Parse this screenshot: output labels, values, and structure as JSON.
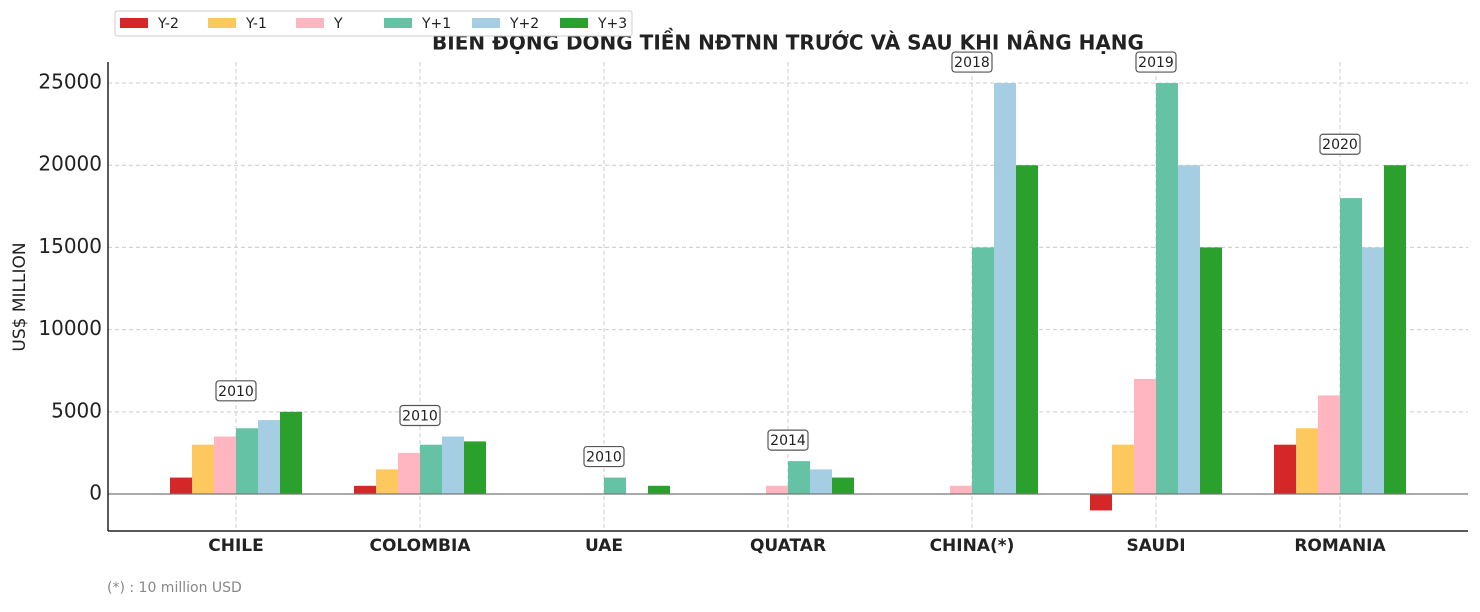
{
  "chart_data": {
    "type": "bar",
    "title": "BIẾN ĐỘNG DÒNG TIỀN NĐTNN TRƯỚC VÀ SAU KHI NÂNG HẠNG",
    "y_label": "US$ MILLION",
    "footnote": "(*) : 10 million USD",
    "categories": [
      "CHILE",
      "COLOMBIA",
      "UAE",
      "QUATAR",
      "CHINA(*)",
      "SAUDI",
      "ROMANIA"
    ],
    "annotations": [
      "2010",
      "2010",
      "2010",
      "2014",
      "2018",
      "2019",
      "2020"
    ],
    "series": [
      {
        "name": "Y-2",
        "color": "#d62728",
        "values": [
          1000,
          500,
          0,
          0,
          0,
          -1000,
          3000
        ]
      },
      {
        "name": "Y-1",
        "color": "#fdc85e",
        "values": [
          3000,
          1500,
          0,
          0,
          0,
          3000,
          4000
        ]
      },
      {
        "name": "Y",
        "color": "#ffb6c1",
        "values": [
          3500,
          2500,
          0,
          500,
          500,
          7000,
          6000
        ]
      },
      {
        "name": "Y+1",
        "color": "#66c2a5",
        "values": [
          4000,
          3000,
          1000,
          2000,
          15000,
          25000,
          18000
        ]
      },
      {
        "name": "Y+2",
        "color": "#a6cee3",
        "values": [
          4500,
          3500,
          0,
          1500,
          25000,
          20000,
          15000
        ]
      },
      {
        "name": "Y+3",
        "color": "#2ca02c",
        "values": [
          5000,
          3200,
          500,
          1000,
          20000,
          15000,
          20000
        ]
      }
    ],
    "ylim": [
      -2250,
      26280
    ],
    "yticks": [
      0,
      5000,
      10000,
      15000,
      20000,
      25000
    ],
    "grid": true,
    "legend": "top-left"
  }
}
